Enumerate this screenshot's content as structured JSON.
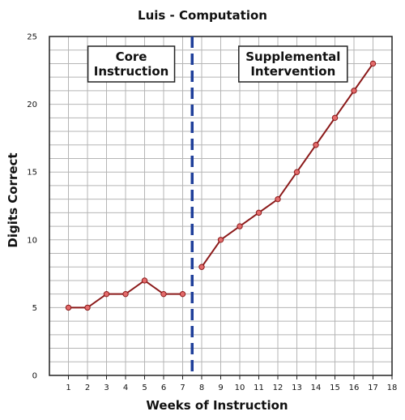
{
  "chart_data": {
    "type": "line",
    "title": "Luis - Computation",
    "xlabel": "Weeks of Instruction",
    "ylabel": "Digits Correct",
    "xlim": [
      0,
      18
    ],
    "ylim": [
      0,
      25
    ],
    "x_ticks": [
      1,
      2,
      3,
      4,
      5,
      6,
      7,
      8,
      9,
      10,
      11,
      12,
      13,
      14,
      15,
      16,
      17,
      18
    ],
    "y_ticks": [
      0,
      5,
      10,
      15,
      20,
      25
    ],
    "grid": true,
    "phase_change_x": 7.5,
    "phases": [
      {
        "label_lines": [
          "Core",
          "Instruction"
        ]
      },
      {
        "label_lines": [
          "Supplemental",
          "Intervention"
        ]
      }
    ],
    "series": [
      {
        "x": [
          1,
          2,
          3,
          4,
          5,
          6,
          7
        ],
        "y": [
          5,
          5,
          6,
          6,
          7,
          6,
          6
        ]
      },
      {
        "x": [
          8,
          9,
          10,
          11,
          12,
          13,
          14,
          15,
          16,
          17
        ],
        "y": [
          8,
          10,
          11,
          12,
          13,
          15,
          17,
          19,
          21,
          23
        ]
      }
    ],
    "colors": {
      "line": "#8b1a1a",
      "marker": "#e36b6b",
      "phase_line": "#1f3f9a",
      "grid": "#b5b5b5"
    }
  }
}
